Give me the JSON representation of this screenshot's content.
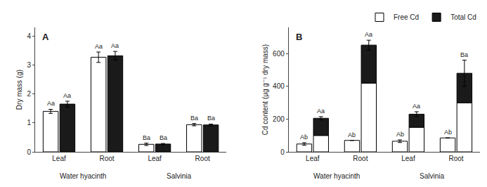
{
  "chart_data": [
    {
      "type": "bar",
      "title": "A",
      "ylabel": "Dry mass (g)",
      "categories": [
        "Leaf",
        "Root",
        "Leaf",
        "Root"
      ],
      "category_groups": [
        {
          "label": "Water hyacinth",
          "size": 2
        },
        {
          "label": "Salvinia",
          "size": 2
        }
      ],
      "series": [
        {
          "color": "#ffffff",
          "values": [
            1.4,
            3.27,
            0.26,
            0.94
          ],
          "errors": [
            0.07,
            0.18,
            0.04,
            0.04
          ],
          "annotations": [
            "Aa",
            "Aa",
            "Ba",
            "Ba"
          ]
        },
        {
          "color": "#1a1a1a",
          "values": [
            1.65,
            3.32,
            0.27,
            0.93
          ],
          "errors": [
            0.1,
            0.15,
            0.02,
            0.03
          ],
          "annotations": [
            "Aa",
            "Aa",
            "Ba",
            "Ba"
          ]
        }
      ],
      "edge_color": "#000000",
      "ylim": [
        0,
        4.3
      ],
      "yticks": [
        0,
        1,
        2,
        3,
        4
      ],
      "grid": false
    },
    {
      "type": "bar",
      "title": "B",
      "ylabel": "Cd content (μg g⁻¹ dry mass)",
      "categories": [
        "Leaf",
        "Root",
        "Leaf",
        "Root"
      ],
      "category_groups": [
        {
          "label": "Water hyacinth",
          "size": 2
        },
        {
          "label": "Salvinia",
          "size": 2
        }
      ],
      "stacked": true,
      "series": [
        [
          {
            "name": "Free Cd",
            "color": "#ffffff",
            "values": [
              48,
              70,
              65,
              85
            ],
            "errors": [
              8,
              0,
              8,
              0
            ],
            "annotations": [
              "Ab",
              "Ab",
              "Ab",
              "Ab"
            ]
          }
        ],
        [
          {
            "name": "Free Cd",
            "color": "#ffffff",
            "values": [
              100,
              420,
              150,
              300
            ]
          },
          {
            "name": "Total Cd",
            "color": "#1a1a1a",
            "values": [
              105,
              232,
              80,
              180
            ],
            "errors": [
              10,
              30,
              15,
              80
            ],
            "annotations": [
              "Aa",
              "Aa",
              "Aa",
              "Ba"
            ]
          }
        ]
      ],
      "edge_color": "#000000",
      "ylim": [
        0,
        760
      ],
      "yticks": [
        0,
        200,
        400,
        600
      ],
      "grid": false,
      "legend": "upper right"
    }
  ]
}
